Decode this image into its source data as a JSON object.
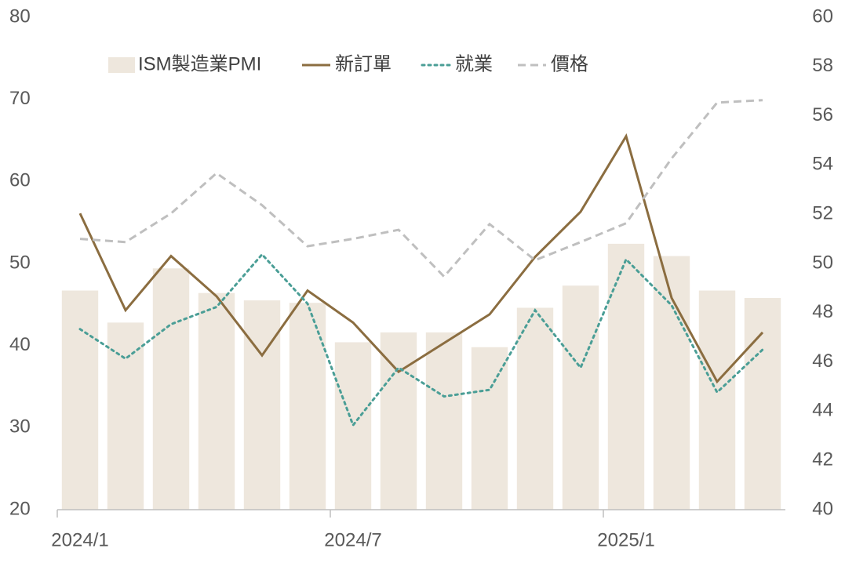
{
  "chart_data": {
    "type": "bar-line",
    "categories": [
      "2024/1",
      null,
      null,
      null,
      null,
      null,
      "2024/7",
      null,
      null,
      null,
      null,
      null,
      "2025/1",
      null,
      null,
      null
    ],
    "series": [
      {
        "name": "ISM製造業PMI",
        "type": "bar",
        "axis": "y2",
        "color": "#eee7dd",
        "values": [
          48.9,
          47.6,
          49.8,
          48.8,
          48.5,
          48.4,
          46.8,
          47.2,
          47.2,
          46.6,
          48.2,
          49.1,
          50.8,
          50.3,
          48.9,
          48.6
        ]
      },
      {
        "name": "新訂單",
        "type": "line",
        "style": "solid",
        "color": "#8b6d40",
        "values": [
          56.1,
          44.3,
          50.9,
          46.0,
          38.8,
          46.7,
          42.8,
          36.8,
          40.3,
          43.8,
          50.8,
          56.3,
          65.5,
          45.8,
          35.6,
          41.6
        ]
      },
      {
        "name": "就業",
        "type": "line",
        "style": "dotted",
        "color": "#4a9e96",
        "values": [
          42.0,
          38.4,
          42.6,
          44.7,
          51.1,
          45.1,
          30.3,
          37.3,
          33.8,
          34.6,
          44.3,
          37.3,
          50.5,
          44.9,
          34.3,
          39.5
        ]
      },
      {
        "name": "價格",
        "type": "line",
        "style": "dashed",
        "color": "#bfbfbf",
        "values": [
          53.0,
          52.6,
          56.1,
          61.0,
          57.1,
          52.1,
          53.0,
          54.1,
          48.4,
          54.8,
          50.4,
          52.6,
          54.9,
          62.8,
          69.6,
          69.9
        ]
      }
    ],
    "ylim": [
      20,
      80
    ],
    "yticks": [
      20,
      30,
      40,
      50,
      60,
      70,
      80
    ],
    "y2lim": [
      40,
      60
    ],
    "y2ticks": [
      40,
      42,
      44,
      46,
      48,
      50,
      52,
      54,
      56,
      58,
      60
    ],
    "legend": "top"
  }
}
